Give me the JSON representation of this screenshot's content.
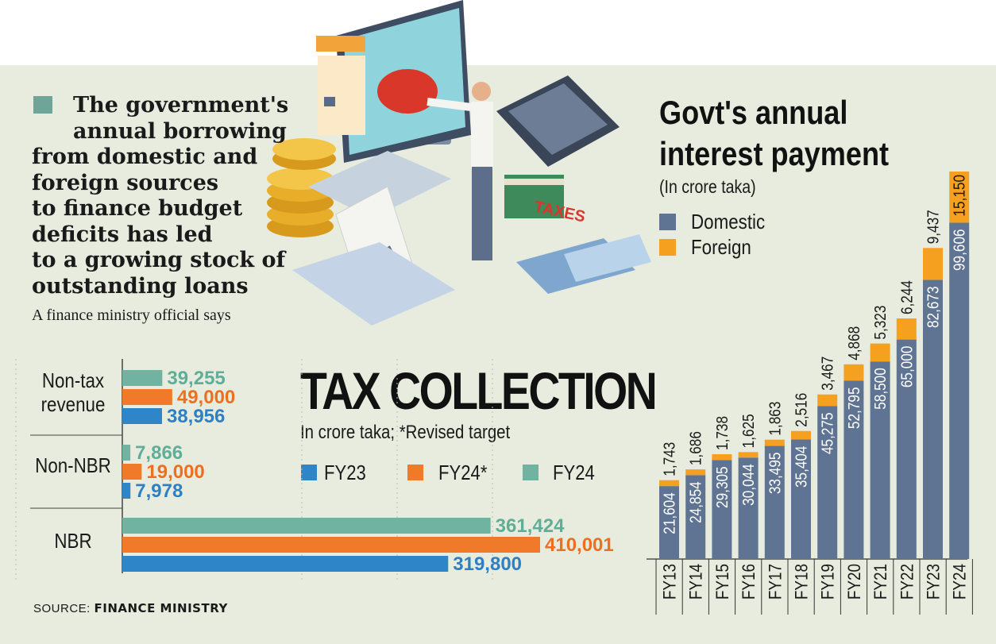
{
  "quote": {
    "lines": [
      "The government's",
      "annual borrowing",
      "from domestic and",
      "foreign sources",
      "to finance budget",
      "deficits has led",
      "to a growing stock of",
      "outstanding loans"
    ],
    "attribution": "A finance ministry official says"
  },
  "tax_chart": {
    "title": "TAX COLLECTION",
    "subtitle": "In crore taka; *Revised target",
    "source_prefix": "SOURCE:",
    "source_name": "FINANCE MINISTRY"
  },
  "interest_chart": {
    "title_line1": "Govt's annual",
    "title_line2": "interest payment",
    "subtitle": "(In crore taka)"
  },
  "chart_data": [
    {
      "type": "bar",
      "orientation": "horizontal",
      "title": "TAX COLLECTION",
      "subtitle": "In crore taka; *Revised target",
      "categories": [
        "Non-tax revenue",
        "Non-NBR",
        "NBR"
      ],
      "series": [
        {
          "name": "FY24",
          "color": "#6fb3a0",
          "values": [
            39255,
            7866,
            361424
          ]
        },
        {
          "name": "FY24*",
          "color": "#f07a2a",
          "values": [
            49000,
            19000,
            410001
          ]
        },
        {
          "name": "FY23",
          "color": "#2e86c8",
          "values": [
            38956,
            7978,
            319800
          ]
        }
      ],
      "value_labels": [
        [
          "39,255",
          "7,866",
          "361,424"
        ],
        [
          "49,000",
          "19,000",
          "410,001"
        ],
        [
          "38,956",
          "7,978",
          "319,800"
        ]
      ],
      "legend": [
        "FY23",
        "FY24*",
        "FY24"
      ],
      "source": "SOURCE: FINANCE MINISTRY"
    },
    {
      "type": "bar",
      "stacked": true,
      "title": "Govt's annual interest payment",
      "subtitle": "(In crore taka)",
      "categories": [
        "FY13",
        "FY14",
        "FY15",
        "FY16",
        "FY17",
        "FY18",
        "FY19",
        "FY20",
        "FY21",
        "FY22",
        "FY23",
        "FY24"
      ],
      "series": [
        {
          "name": "Domestic",
          "color": "#5f7393",
          "values": [
            21604,
            24854,
            29305,
            30044,
            33495,
            35404,
            45275,
            52795,
            58500,
            65000,
            82673,
            99606
          ],
          "labels": [
            "21,604",
            "24,854",
            "29,305",
            "30,044",
            "33,495",
            "35,404",
            "45,275",
            "52,795",
            "58,500",
            "65,000",
            "82,673",
            "99,606"
          ]
        },
        {
          "name": "Foreign",
          "color": "#f5a01f",
          "values": [
            1743,
            1686,
            1738,
            1625,
            1863,
            2516,
            3467,
            4868,
            5323,
            6244,
            9437,
            15150
          ],
          "labels": [
            "1,743",
            "1,686",
            "1,738",
            "1,625",
            "1,863",
            "2,516",
            "3,467",
            "4,868",
            "5,323",
            "6,244",
            "9,437",
            "15,150"
          ]
        }
      ],
      "legend": [
        "Domestic",
        "Foreign"
      ]
    }
  ]
}
